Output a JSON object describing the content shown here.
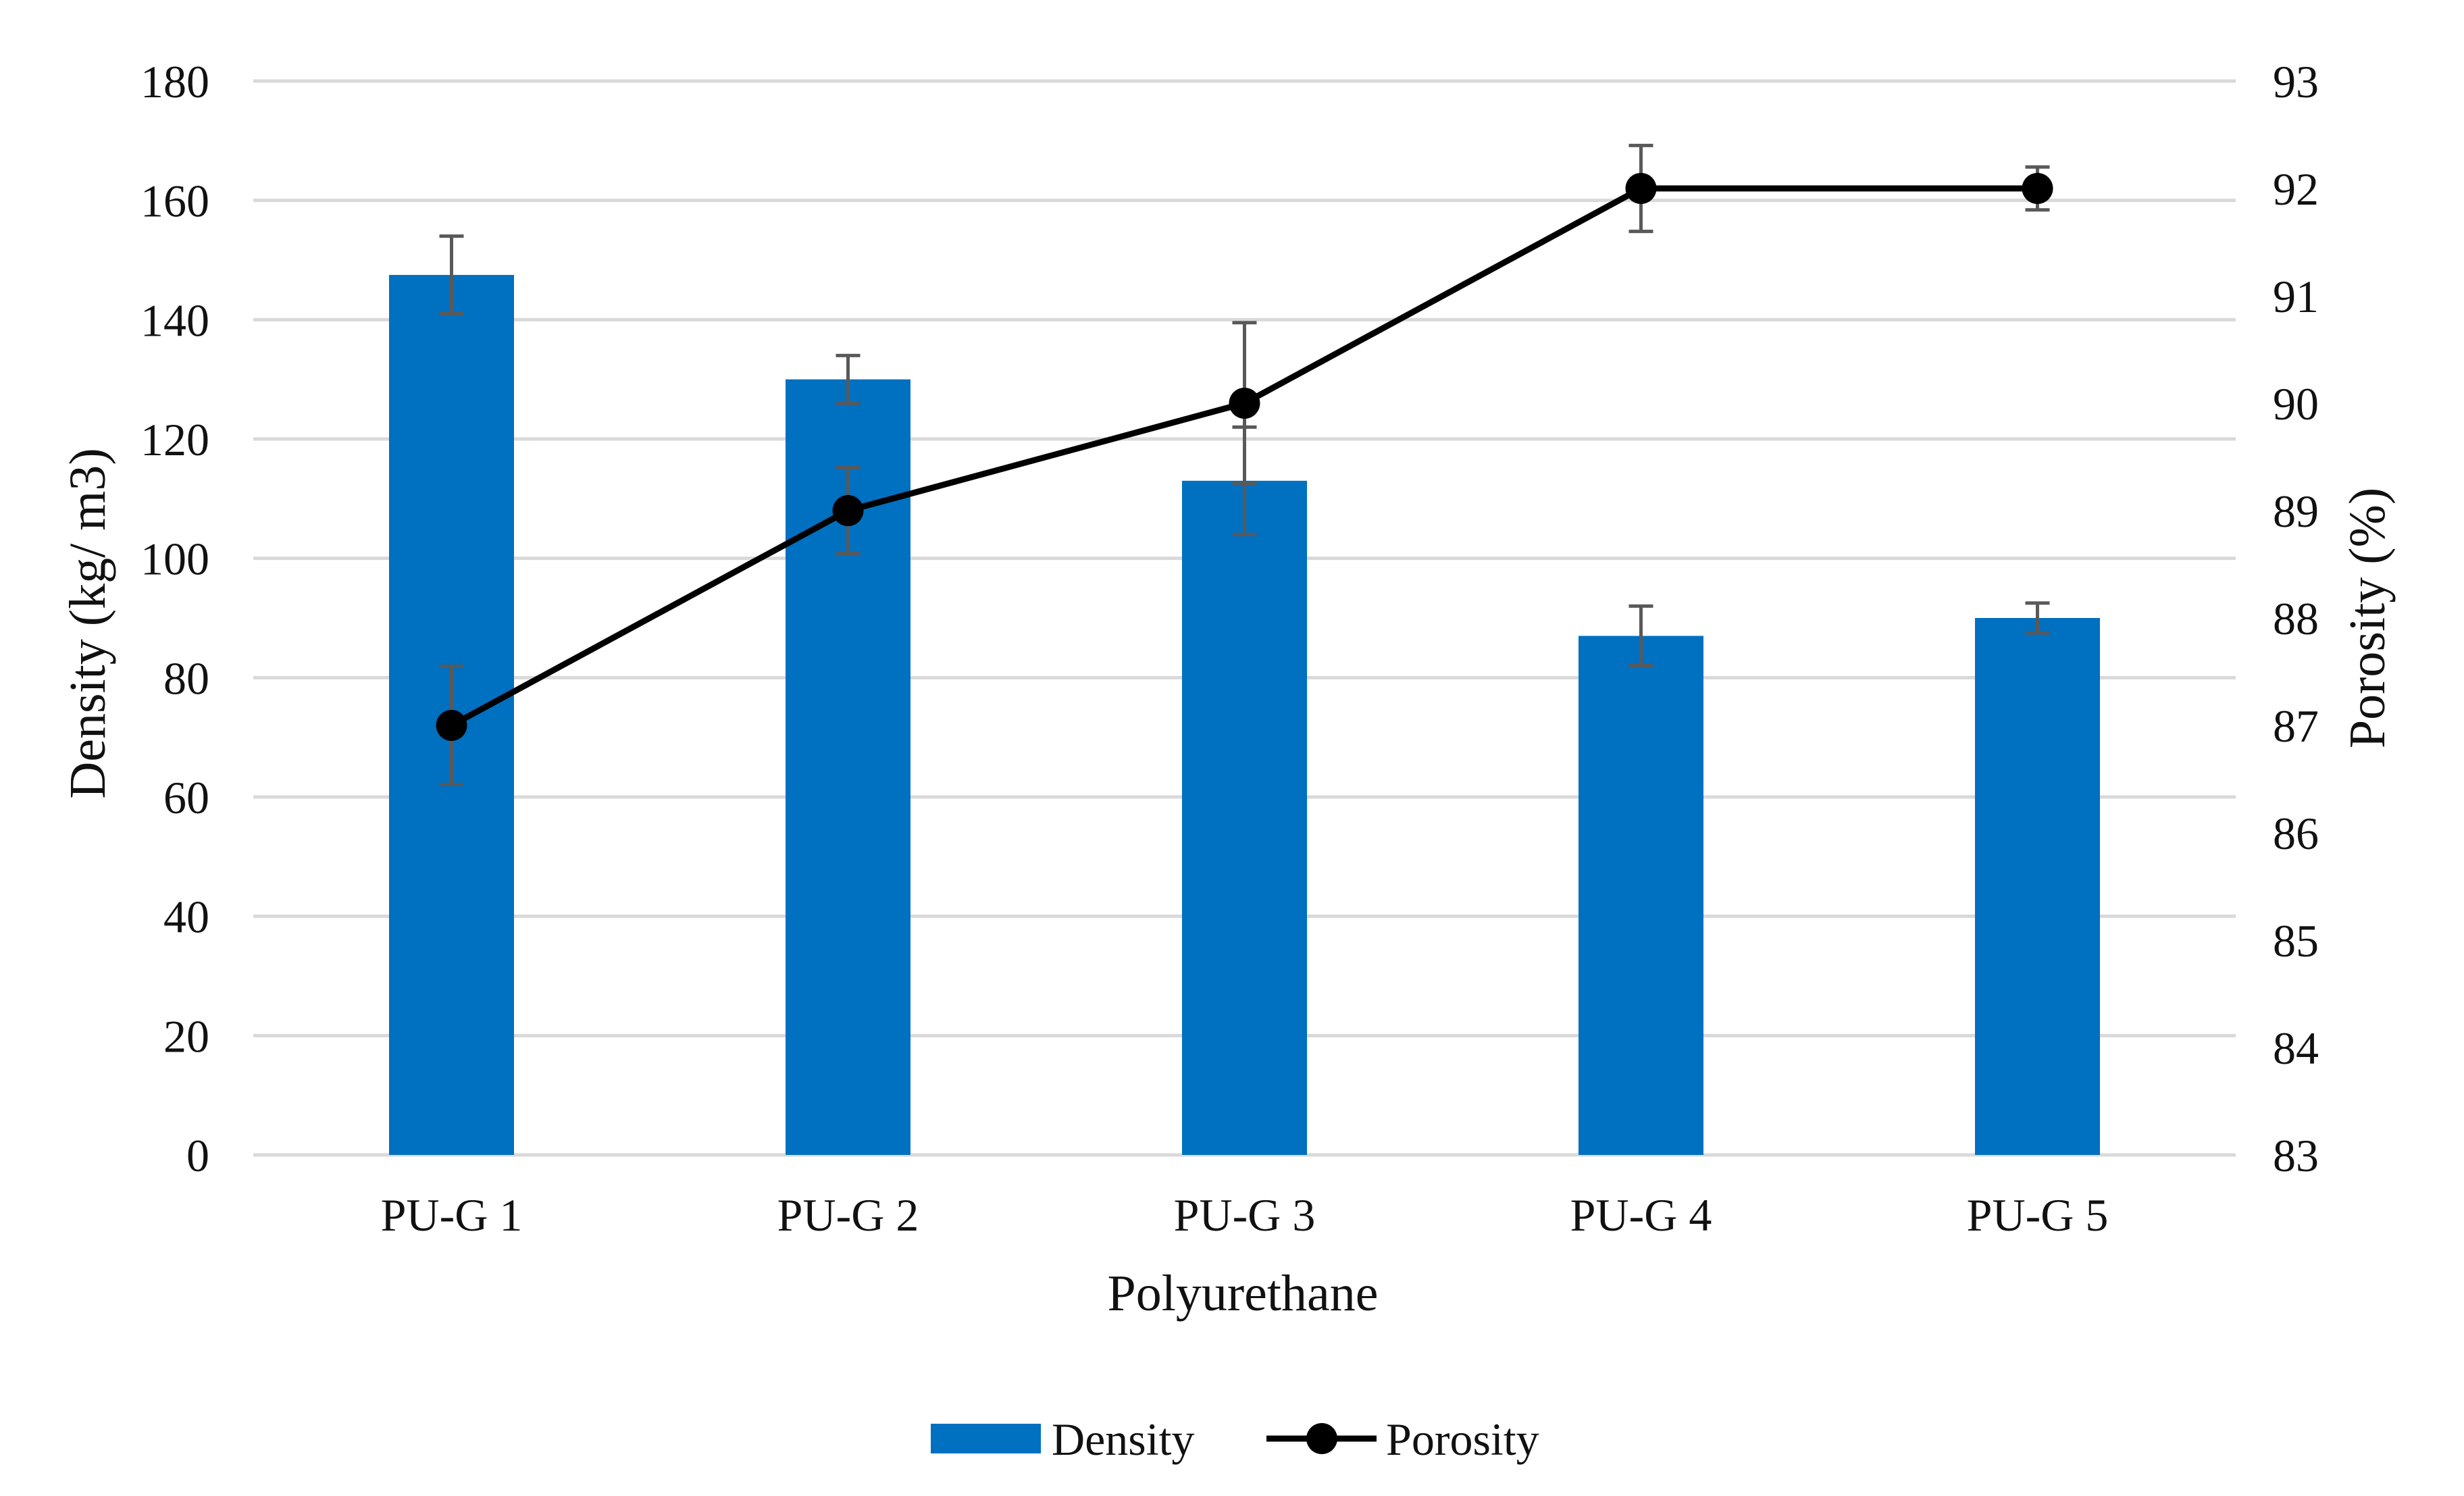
{
  "chart_data": {
    "type": "bar",
    "categories": [
      "PU-G 1",
      "PU-G 2",
      "PU-G 3",
      "PU-G 4",
      "PU-G 5"
    ],
    "xlabel": "Polyurethane",
    "ylabel": "Density (kg/ m3)",
    "y2label": "Porosity (%)",
    "ylim": [
      0,
      180
    ],
    "y2lim": [
      83,
      93
    ],
    "yticks": [
      "0",
      "20",
      "40",
      "60",
      "80",
      "100",
      "120",
      "140",
      "160",
      "180"
    ],
    "y2ticks": [
      "83",
      "84",
      "85",
      "86",
      "87",
      "88",
      "89",
      "90",
      "91",
      "92",
      "93"
    ],
    "grid": true,
    "legend_position": "bottom-center",
    "series": [
      {
        "name": "Density",
        "type": "bar",
        "axis": "left",
        "color": "#0070C0",
        "values": [
          147.5,
          130,
          113,
          87,
          90
        ],
        "error": [
          6.5,
          4,
          9,
          5,
          2.5
        ]
      },
      {
        "name": "Porosity",
        "type": "line",
        "axis": "right",
        "color": "#000000",
        "values": [
          87,
          89,
          90,
          92,
          92
        ],
        "error": [
          0.55,
          0.4,
          0.75,
          0.4,
          0.2
        ]
      }
    ]
  }
}
